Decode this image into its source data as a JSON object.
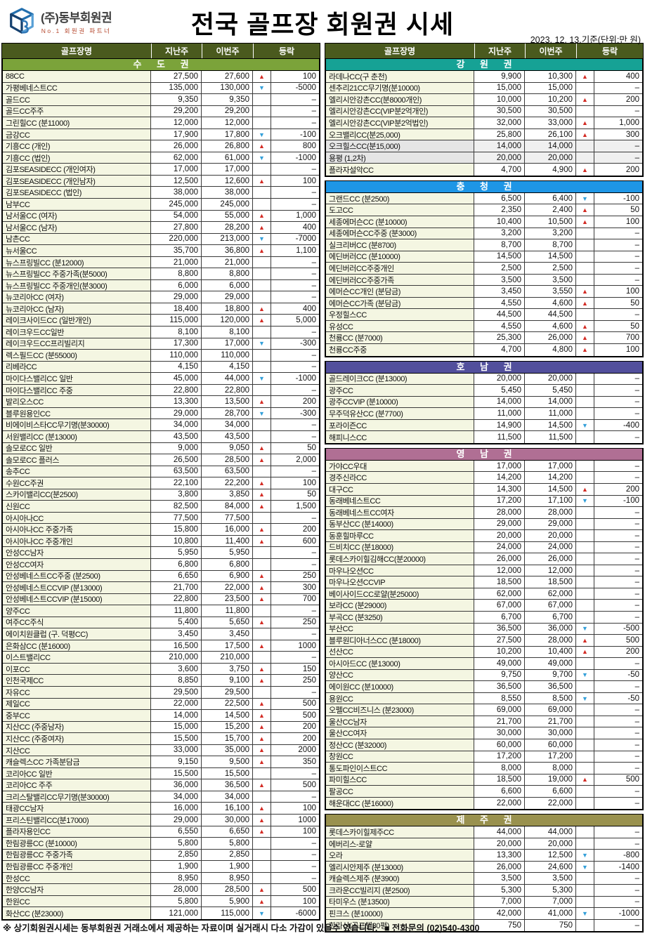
{
  "header": {
    "logo_company": "(주)동부회원권",
    "logo_tagline": "No.1 회원권 파트너",
    "title": "전국 골프장 회원권 시세",
    "date_note": "2023. 12. 13.기준(단위:만 원)"
  },
  "columns": [
    "골프장명",
    "지난주",
    "이번주",
    "등락"
  ],
  "colors": {
    "column_header_bg": "#4a5a1e",
    "sudogwon": "#7ba33a",
    "gangwon": "#16a295",
    "chungcheong": "#1e96e6",
    "honam": "#524f9c",
    "yeongnam": "#b06f94",
    "jeju": "#99914e",
    "name_cell_bg": "#f4f6e2",
    "up_arrow": "#d32b24",
    "down_arrow": "#339fd9"
  },
  "left_sections": [
    {
      "name": "수 도 권",
      "color": "#7ba33a",
      "rows": [
        [
          "88CC",
          "27,500",
          "27,600",
          "up",
          "100"
        ],
        [
          "가평베네스트CC",
          "135,000",
          "130,000",
          "down",
          "-5000"
        ],
        [
          "골드CC",
          "9,350",
          "9,350",
          "",
          "–"
        ],
        [
          "골드CC주주",
          "29,200",
          "29,200",
          "",
          "–"
        ],
        [
          "그린힐CC (분11000)",
          "12,000",
          "12,000",
          "",
          "–"
        ],
        [
          "금강CC",
          "17,900",
          "17,800",
          "down",
          "-100"
        ],
        [
          "기흥CC (개인)",
          "26,000",
          "26,800",
          "up",
          "800"
        ],
        [
          "기흥CC (법인)",
          "62,000",
          "61,000",
          "down",
          "-1000"
        ],
        [
          "김포SEASIDECC (개인여자)",
          "17,000",
          "17,000",
          "",
          "–"
        ],
        [
          "김포SEASIDECC (개인남자)",
          "12,500",
          "12,600",
          "up",
          "100"
        ],
        [
          "김포SEASIDECC (법인)",
          "38,000",
          "38,000",
          "",
          "–"
        ],
        [
          "남부CC",
          "245,000",
          "245,000",
          "",
          "–"
        ],
        [
          "남서울CC (여자)",
          "54,000",
          "55,000",
          "up",
          "1,000"
        ],
        [
          "남서울CC (남자)",
          "27,800",
          "28,200",
          "up",
          "400"
        ],
        [
          "남촌CC",
          "220,000",
          "213,000",
          "down",
          "-7000"
        ],
        [
          "뉴서울CC",
          "35,700",
          "36,800",
          "up",
          "1,100"
        ],
        [
          "뉴스프링빌CC (분12000)",
          "21,000",
          "21,000",
          "",
          "–"
        ],
        [
          "뉴스프링빌CC 주중가족(분5000)",
          "8,800",
          "8,800",
          "",
          "–"
        ],
        [
          "뉴스프링빌CC 주중개인(분3000)",
          "6,000",
          "6,000",
          "",
          "–"
        ],
        [
          "뉴코리아CC (여자)",
          "29,000",
          "29,000",
          "",
          "–"
        ],
        [
          "뉴코리아CC (남자)",
          "18,400",
          "18,800",
          "up",
          "400"
        ],
        [
          "레이크사이드CC (일반개인)",
          "115,000",
          "120,000",
          "up",
          "5,000"
        ],
        [
          "레이크우드CC일반",
          "8,100",
          "8,100",
          "",
          "–"
        ],
        [
          "레이크우드CC프리빌리지",
          "17,300",
          "17,000",
          "down",
          "-300"
        ],
        [
          "렉스필드CC (분55000)",
          "110,000",
          "110,000",
          "",
          "–"
        ],
        [
          "리베라CC",
          "4,150",
          "4,150",
          "",
          "–"
        ],
        [
          "마이다스밸리CC 일반",
          "45,000",
          "44,000",
          "down",
          "-1000"
        ],
        [
          "마이다스밸리CC 주중",
          "22,800",
          "22,800",
          "",
          "–"
        ],
        [
          "발리오스CC",
          "13,300",
          "13,500",
          "up",
          "200"
        ],
        [
          "블루원용인CC",
          "29,000",
          "28,700",
          "down",
          "-300"
        ],
        [
          "비에이비스타CC무기명(분30000)",
          "34,000",
          "34,000",
          "",
          "–"
        ],
        [
          "서원밸리CC (분13000)",
          "43,500",
          "43,500",
          "",
          "–"
        ],
        [
          "솔모로CC 일반",
          "9,000",
          "9,050",
          "up",
          "50"
        ],
        [
          "솔모로CC 플러스",
          "26,500",
          "28,500",
          "up",
          "2,000"
        ],
        [
          "송추CC",
          "63,500",
          "63,500",
          "",
          "–"
        ],
        [
          "수원CC주권",
          "22,100",
          "22,200",
          "up",
          "100"
        ],
        [
          "스카이밸리CC(분2500)",
          "3,800",
          "3,850",
          "up",
          "50"
        ],
        [
          "신원CC",
          "82,500",
          "84,000",
          "up",
          "1,500"
        ],
        [
          "아시아나CC",
          "77,500",
          "77,500",
          "",
          "–"
        ],
        [
          "아시아나CC 주중가족",
          "15,800",
          "16,000",
          "up",
          "200"
        ],
        [
          "아시아나CC 주중개인",
          "10,800",
          "11,400",
          "up",
          "600"
        ],
        [
          "안성CC남자",
          "5,950",
          "5,950",
          "",
          "–"
        ],
        [
          "안성CC여자",
          "6,800",
          "6,800",
          "",
          "–"
        ],
        [
          "안성베네스트CC주중 (분2500)",
          "6,650",
          "6,900",
          "up",
          "250"
        ],
        [
          "안성베네스트CCVIP (분13000)",
          "21,700",
          "22,000",
          "up",
          "300"
        ],
        [
          "안성베네스트CCVIP (분15000)",
          "22,800",
          "23,500",
          "up",
          "700"
        ],
        [
          "양주CC",
          "11,800",
          "11,800",
          "",
          "–"
        ],
        [
          "여주CC주식",
          "5,400",
          "5,650",
          "up",
          "250"
        ],
        [
          "에이치원클럽 (구. 덕평CC)",
          "3,450",
          "3,450",
          "",
          "–"
        ],
        [
          "은화삼CC (분16000)",
          "16,500",
          "17,500",
          "up",
          "1000"
        ],
        [
          "이스트밸리CC",
          "210,000",
          "210,000",
          "",
          "–"
        ],
        [
          "이포CC",
          "3,600",
          "3,750",
          "up",
          "150"
        ],
        [
          "인천국제CC",
          "8,850",
          "9,100",
          "up",
          "250"
        ],
        [
          "자유CC",
          "29,500",
          "29,500",
          "",
          "–"
        ],
        [
          "제일CC",
          "22,000",
          "22,500",
          "up",
          "500"
        ],
        [
          "중부CC",
          "14,000",
          "14,500",
          "up",
          "500"
        ],
        [
          "지산CC (주중남자)",
          "15,000",
          "15,200",
          "up",
          "200"
        ],
        [
          "지산CC (주중여자)",
          "15,500",
          "15,700",
          "up",
          "200"
        ],
        [
          "지산CC",
          "33,000",
          "35,000",
          "up",
          "2000"
        ],
        [
          "캐슬렉스CC 가족분담금",
          "9,150",
          "9,500",
          "up",
          "350"
        ],
        [
          "코리아CC 일반",
          "15,500",
          "15,500",
          "",
          "–"
        ],
        [
          "코리아CC 주주",
          "36,000",
          "36,500",
          "up",
          "500"
        ],
        [
          "크리스탈밸리CC무기명(분30000)",
          "34,000",
          "34,000",
          "",
          "–"
        ],
        [
          "태광CC남자",
          "16,000",
          "16,100",
          "up",
          "100"
        ],
        [
          "프리스틴밸리CC(분17000)",
          "29,000",
          "30,000",
          "up",
          "1000"
        ],
        [
          "플라자용인CC",
          "6,550",
          "6,650",
          "up",
          "100"
        ],
        [
          "한림광릉CC (분10000)",
          "5,800",
          "5,800",
          "",
          "–"
        ],
        [
          "한림광릉CC 주중가족",
          "2,850",
          "2,850",
          "",
          "–"
        ],
        [
          "한림광릉CC 주중개인",
          "1,900",
          "1,900",
          "",
          "–"
        ],
        [
          "한성CC",
          "8,950",
          "8,950",
          "",
          "–"
        ],
        [
          "한양CC남자",
          "28,000",
          "28,500",
          "up",
          "500"
        ],
        [
          "한원CC",
          "5,800",
          "5,900",
          "up",
          "100"
        ],
        [
          "화산CC (분23000)",
          "121,000",
          "115,000",
          "down",
          "-6000"
        ]
      ]
    }
  ],
  "right_sections": [
    {
      "name": "강 원 권",
      "color": "#16a295",
      "gray_rows": [
        6,
        7
      ],
      "rows": [
        [
          "라데나CC(구 춘천)",
          "9,900",
          "10,300",
          "up",
          "400"
        ],
        [
          "센추리21CC무기명(분10000)",
          "15,000",
          "15,000",
          "",
          "–"
        ],
        [
          "엘리시안강촌CC(분8000개인)",
          "10,000",
          "10,200",
          "up",
          "200"
        ],
        [
          "엘리시안강촌CC(VIP분2억개인)",
          "30,500",
          "30,500",
          "",
          "–"
        ],
        [
          "엘리시안강촌CC(VIP분2억법인)",
          "32,000",
          "33,000",
          "up",
          "1,000"
        ],
        [
          "오크밸리CC(분25,000)",
          "25,800",
          "26,100",
          "up",
          "300"
        ],
        [
          "오크힐스CC(분15,000)",
          "14,000",
          "14,000",
          "",
          "–"
        ],
        [
          "용평 (1,2차)",
          "20,000",
          "20,000",
          "",
          "–"
        ],
        [
          "플라자설악CC",
          "4,700",
          "4,900",
          "up",
          "200"
        ]
      ]
    },
    {
      "name": "충 청 권",
      "color": "#1e96e6",
      "rows": [
        [
          "그랜드CC (분2500)",
          "6,500",
          "6,400",
          "down",
          "-100"
        ],
        [
          "도고CC",
          "2,350",
          "2,400",
          "up",
          "50"
        ],
        [
          "세종에머슨CC (분10000)",
          "10,400",
          "10,500",
          "up",
          "100"
        ],
        [
          "세종에머슨CC주중 (분3000)",
          "3,200",
          "3,200",
          "",
          "–"
        ],
        [
          "실크리버CC (분8700)",
          "8,700",
          "8,700",
          "",
          "–"
        ],
        [
          "에딘버러CC (분10000)",
          "14,500",
          "14,500",
          "",
          "–"
        ],
        [
          "에딘버러CC주중개인",
          "2,500",
          "2,500",
          "",
          "–"
        ],
        [
          "에딘버러CC주중가족",
          "3,500",
          "3,500",
          "",
          "–"
        ],
        [
          "에머슨CC개인 (분담금)",
          "3,450",
          "3,550",
          "up",
          "100"
        ],
        [
          "에머슨CC가족 (분담금)",
          "4,550",
          "4,600",
          "up",
          "50"
        ],
        [
          "우정힐스CC",
          "44,500",
          "44,500",
          "",
          "–"
        ],
        [
          "유성CC",
          "4,550",
          "4,600",
          "up",
          "50"
        ],
        [
          "천룡CC (분7000)",
          "25,300",
          "26,000",
          "up",
          "700"
        ],
        [
          "천룡CC주중",
          "4,700",
          "4,800",
          "up",
          "100"
        ]
      ]
    },
    {
      "name": "호 남 권",
      "color": "#524f9c",
      "rows": [
        [
          "골드레이크CC (분13000)",
          "20,000",
          "20,000",
          "",
          "–"
        ],
        [
          "광주CC",
          "5,450",
          "5,450",
          "",
          "–"
        ],
        [
          "광주CCVIP (분10000)",
          "14,000",
          "14,000",
          "",
          "–"
        ],
        [
          "무주덕유산CC (분7700)",
          "11,000",
          "11,000",
          "",
          "–"
        ],
        [
          "포라이즌CC",
          "14,900",
          "14,500",
          "down",
          "-400"
        ],
        [
          "해피니스CC",
          "11,500",
          "11,500",
          "",
          "–"
        ]
      ]
    },
    {
      "name": "영 남 권",
      "color": "#b06f94",
      "rows": [
        [
          "가야CC우대",
          "17,000",
          "17,000",
          "",
          "–"
        ],
        [
          "경주신라CC",
          "14,200",
          "14,200",
          "",
          "–"
        ],
        [
          "대구CC",
          "14,300",
          "14,500",
          "up",
          "200"
        ],
        [
          "동래베네스트CC",
          "17,200",
          "17,100",
          "down",
          "-100"
        ],
        [
          "동래베네스트CC여자",
          "28,000",
          "28,000",
          "",
          "–"
        ],
        [
          "동부산CC (분14000)",
          "29,000",
          "29,000",
          "",
          "–"
        ],
        [
          "동훈힐마루CC",
          "20,000",
          "20,000",
          "",
          "–"
        ],
        [
          "드비치CC (분18000)",
          "24,000",
          "24,000",
          "",
          "–"
        ],
        [
          "롯데스카이힐김해CC(분20000)",
          "26,000",
          "26,000",
          "",
          "–"
        ],
        [
          "마우나오션CC",
          "12,000",
          "12,000",
          "",
          "–"
        ],
        [
          "마우나오션CCVIP",
          "18,500",
          "18,500",
          "",
          "–"
        ],
        [
          "베이사이드CC로얄(분25000)",
          "62,000",
          "62,000",
          "",
          "–"
        ],
        [
          "보라CC (분29000)",
          "67,000",
          "67,000",
          "",
          "–"
        ],
        [
          "부곡CC (분3250)",
          "6,700",
          "6,700",
          "",
          "–"
        ],
        [
          "부산CC",
          "36,500",
          "36,000",
          "down",
          "-500"
        ],
        [
          "블루원디아너스CC (분18000)",
          "27,500",
          "28,000",
          "up",
          "500"
        ],
        [
          "선산CC",
          "10,200",
          "10,400",
          "up",
          "200"
        ],
        [
          "아시아드CC (분13000)",
          "49,000",
          "49,000",
          "",
          "–"
        ],
        [
          "양산CC",
          "9,750",
          "9,700",
          "down",
          "-50"
        ],
        [
          "에이원CC (분10000)",
          "36,500",
          "36,500",
          "",
          "–"
        ],
        [
          "용원CC",
          "8,550",
          "8,500",
          "down",
          "-50"
        ],
        [
          "오펠CC비즈니스 (분23000)",
          "69,000",
          "69,000",
          "",
          "–"
        ],
        [
          "울산CC남자",
          "21,700",
          "21,700",
          "",
          "–"
        ],
        [
          "울산CC여자",
          "30,000",
          "30,000",
          "",
          "–"
        ],
        [
          "정산CC (분32000)",
          "60,000",
          "60,000",
          "",
          "–"
        ],
        [
          "창원CC",
          "17,200",
          "17,200",
          "",
          "–"
        ],
        [
          "통도파인이스트CC",
          "8,000",
          "8,000",
          "",
          "–"
        ],
        [
          "파미힐스CC",
          "18,500",
          "19,000",
          "up",
          "500"
        ],
        [
          "팔공CC",
          "6,600",
          "6,600",
          "",
          "–"
        ],
        [
          "해운대CC (분16000)",
          "22,000",
          "22,000",
          "",
          "–"
        ]
      ]
    },
    {
      "name": "제 주 권",
      "color": "#99914e",
      "rows": [
        [
          "롯데스카이힐제주CC",
          "44,000",
          "44,000",
          "",
          "–"
        ],
        [
          "에버리스-로얄",
          "20,000",
          "20,000",
          "",
          "–"
        ],
        [
          "오라",
          "13,300",
          "12,500",
          "down",
          "-800"
        ],
        [
          "엘리시안제주 (분13000)",
          "26,000",
          "24,600",
          "down",
          "-1400"
        ],
        [
          "캐슬렉스제주 (분3900)",
          "3,500",
          "3,500",
          "",
          "–"
        ],
        [
          "크라운CC빌리지 (분2500)",
          "5,300",
          "5,300",
          "",
          "–"
        ],
        [
          "타미우스 (분13500)",
          "7,000",
          "7,000",
          "",
          "–"
        ],
        [
          "핀크스 (분10000)",
          "42,000",
          "41,000",
          "down",
          "-1000"
        ],
        [
          "한라산(골프텔30평)",
          "750",
          "750",
          "",
          "–"
        ]
      ]
    }
  ],
  "footer": {
    "note": "※ 상기회원권시세는 동부회원권 거래소에서 제공하는 자료이며 실거래시 다소 가감이 있을수 있습니다.",
    "contact": "■ 전화문의 (02)540-4300"
  }
}
